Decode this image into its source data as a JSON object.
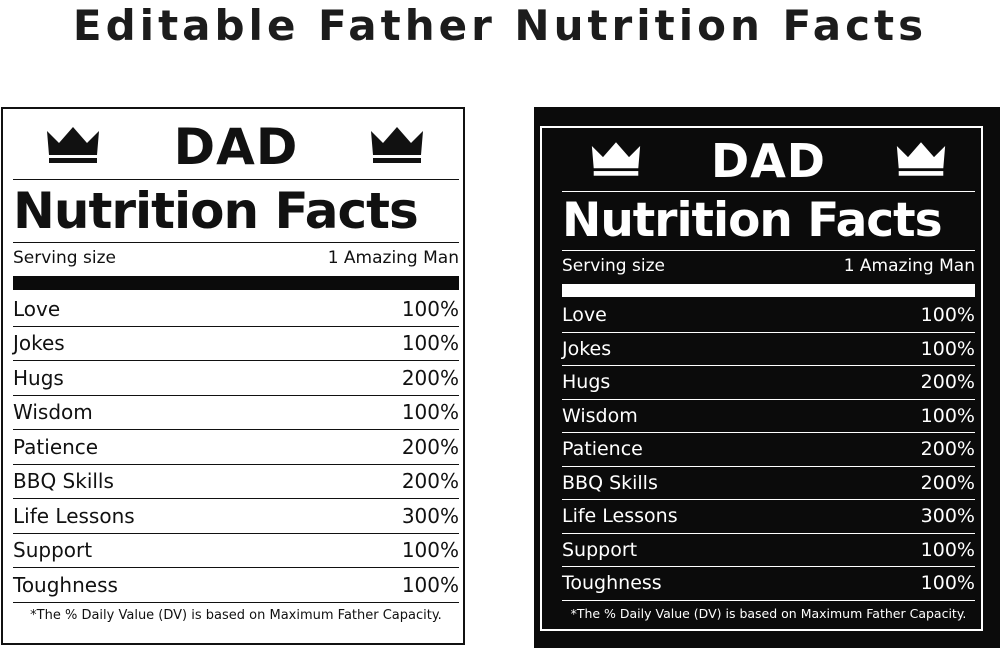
{
  "page_title": "Editable Father Nutrition Facts",
  "label": {
    "heading": "DAD",
    "subheading": "Nutrition Facts",
    "serving_label": "Serving size",
    "serving_value": "1 Amazing Man",
    "rows": [
      {
        "name": "Love",
        "value": "100%"
      },
      {
        "name": "Jokes",
        "value": "100%"
      },
      {
        "name": "Hugs",
        "value": "200%"
      },
      {
        "name": "Wisdom",
        "value": "100%"
      },
      {
        "name": "Patience",
        "value": "200%"
      },
      {
        "name": "BBQ Skills",
        "value": "200%"
      },
      {
        "name": "Life Lessons",
        "value": "300%"
      },
      {
        "name": "Support",
        "value": "100%"
      },
      {
        "name": "Toughness",
        "value": "100%"
      }
    ],
    "footnote": "*The % Daily Value (DV) is based on Maximum Father Capacity.",
    "icon": "crown-icon"
  },
  "colors": {
    "light_background": "#ffffff",
    "light_foreground": "#111111",
    "dark_background": "#0b0b0b",
    "dark_foreground": "#ffffff"
  }
}
